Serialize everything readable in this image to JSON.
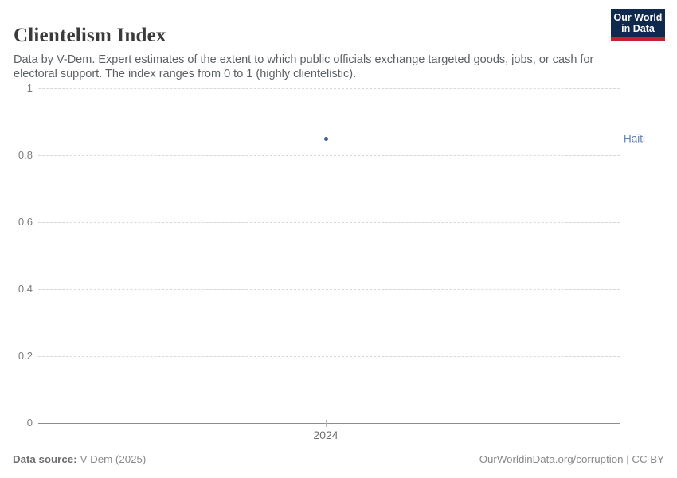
{
  "header": {
    "title": "Clientelism Index",
    "subtitle": "Data by V-Dem. Expert estimates of the extent to which public officials exchange targeted goods, jobs, or cash for electoral support. The index ranges from 0 to 1 (highly clientelistic).",
    "logo": {
      "line1": "Our World",
      "line2": "in Data"
    }
  },
  "chart_data": {
    "type": "scatter",
    "title": "Clientelism Index",
    "x": [
      2024
    ],
    "series": [
      {
        "name": "Haiti",
        "x": [
          2024
        ],
        "values": [
          0.85
        ]
      }
    ],
    "xlabel": "",
    "ylabel": "",
    "x_ticks": [
      "2024"
    ],
    "y_ticks": [
      0,
      0.2,
      0.4,
      0.6,
      0.8,
      1
    ],
    "ylim": [
      0,
      1
    ],
    "grid": "horizontal-dashed",
    "legend_position": "right-of-point-row",
    "entity_label": "Haiti"
  },
  "footer": {
    "source_label": "Data source:",
    "source_value": "V-Dem (2025)",
    "credit": "OurWorldinData.org/corruption | CC BY"
  },
  "colors": {
    "series": "#3a5fa5",
    "entity_label": "#5f7fb1",
    "grid": "#d8d8d8",
    "axis": "#8c8c8c",
    "tick_text": "#7e7e7e",
    "logo_bg": "#102a4e",
    "logo_red": "#c51f34"
  }
}
